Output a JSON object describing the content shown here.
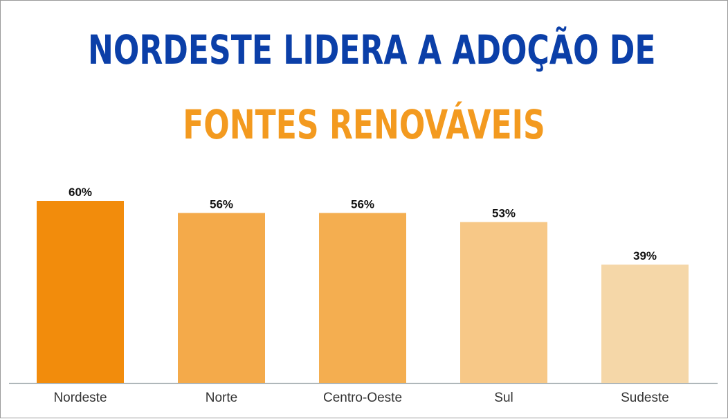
{
  "header": {
    "title_line1": "NORDESTE LIDERA A ADOÇÃO DE",
    "title_line2": "FONTES RENOVÁVEIS"
  },
  "colors": {
    "title_primary": "#0b3fa8",
    "title_accent": "#f39a1f",
    "axis": "#9aa4a8"
  },
  "chart_data": {
    "type": "bar",
    "title": "NORDESTE LIDERA A ADOÇÃO DE FONTES RENOVÁVEIS",
    "categories": [
      "Nordeste",
      "Norte",
      "Centro-Oeste",
      "Sul",
      "Sudeste"
    ],
    "values": [
      60,
      56,
      56,
      53,
      39
    ],
    "value_labels": [
      "60%",
      "56%",
      "56%",
      "53%",
      "39%"
    ],
    "bar_colors": [
      "#f28c0c",
      "#f4aa4a",
      "#f4ae50",
      "#f7c887",
      "#f5d7a8"
    ],
    "ylim": [
      0,
      60
    ],
    "grid": false,
    "legend": "none",
    "xlabel": "",
    "ylabel": ""
  }
}
